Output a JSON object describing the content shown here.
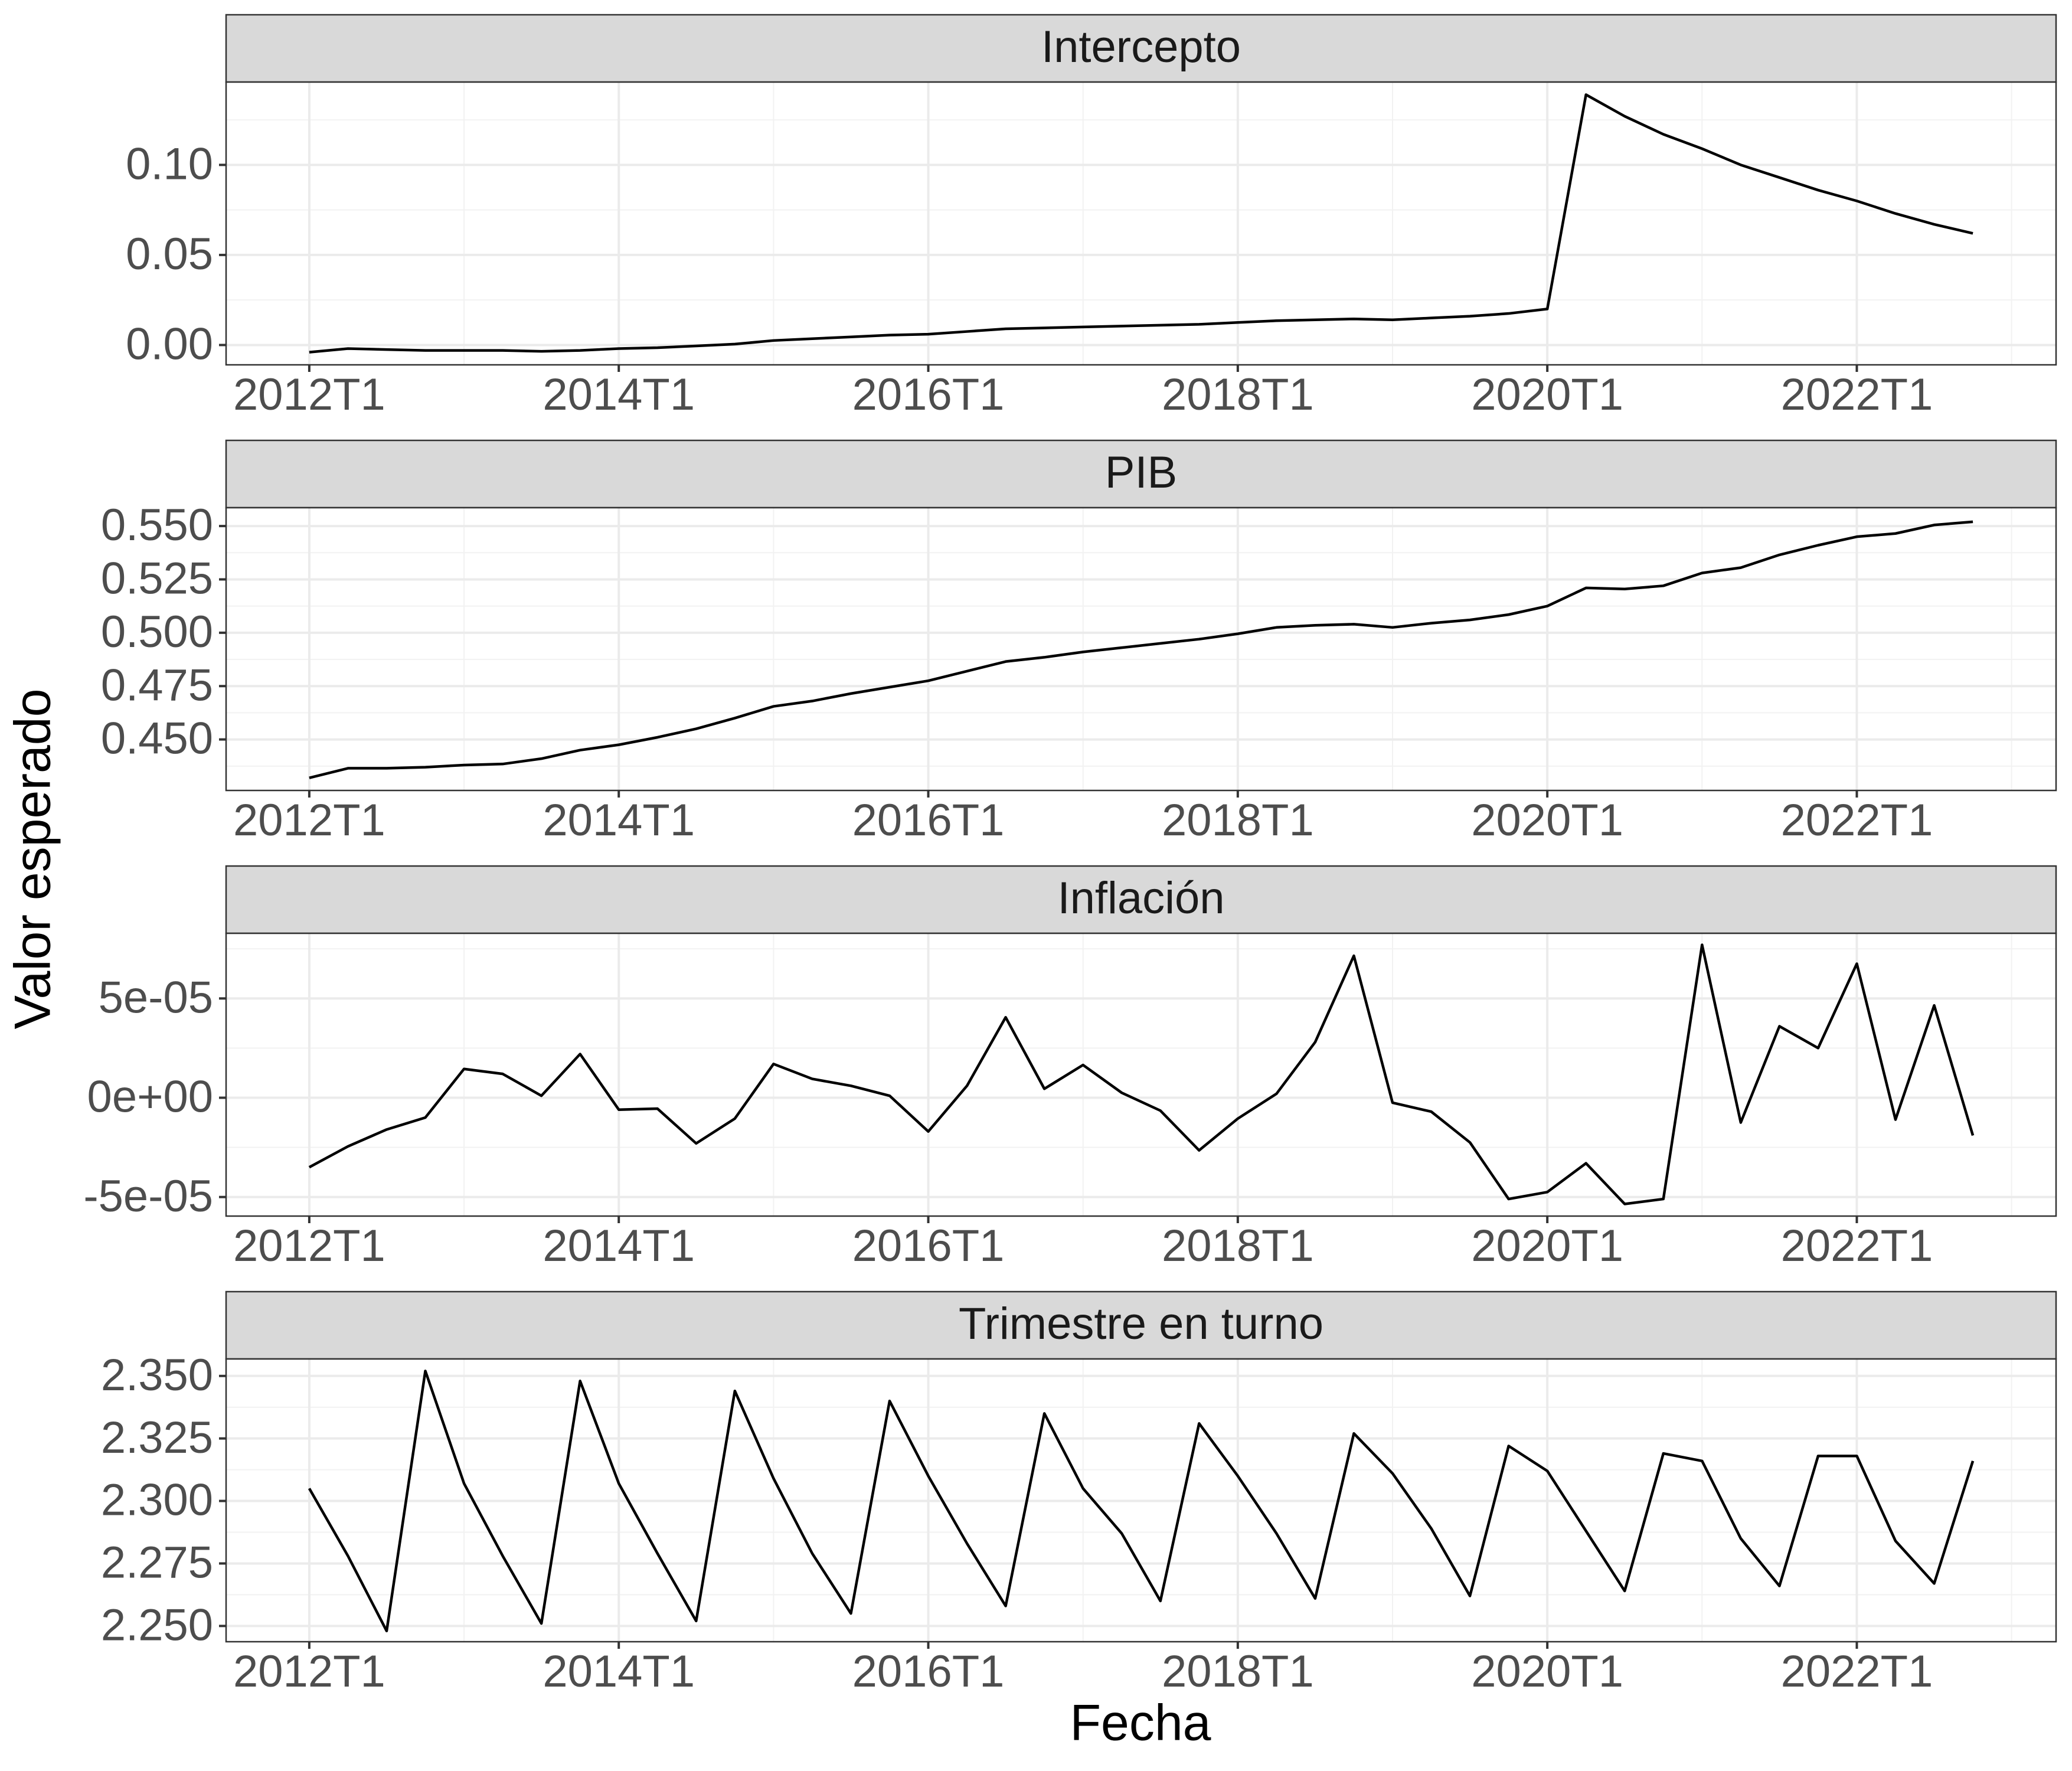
{
  "xlabel": "Fecha",
  "ylabel": "Valor esperado",
  "chart_data": [
    {
      "type": "line",
      "title": "Intercepto",
      "categories": [
        "2012T1",
        null,
        null,
        null,
        null,
        null,
        null,
        null,
        "2014T1",
        null,
        null,
        null,
        null,
        null,
        null,
        null,
        "2016T1",
        null,
        null,
        null,
        null,
        null,
        null,
        null,
        "2018T1",
        null,
        null,
        null,
        null,
        null,
        null,
        null,
        "2020T1",
        null,
        null,
        null,
        null,
        null,
        null,
        null,
        "2022T1",
        null,
        null,
        null
      ],
      "values": [
        -0.004,
        -0.002,
        -0.0025,
        -0.003,
        -0.003,
        -0.003,
        -0.0035,
        -0.003,
        -0.002,
        -0.0015,
        -0.0005,
        0.0005,
        0.0025,
        0.0035,
        0.0045,
        0.0055,
        0.006,
        0.0075,
        0.009,
        0.0095,
        0.01,
        0.0105,
        0.011,
        0.0115,
        0.0125,
        0.0135,
        0.014,
        0.0145,
        0.014,
        0.015,
        0.016,
        0.0175,
        0.02,
        0.139,
        0.127,
        0.117,
        0.109,
        0.1,
        0.093,
        0.086,
        0.08,
        0.073,
        0.067,
        0.062
      ],
      "color": "#000000",
      "ylim": [
        -0.011,
        0.146
      ],
      "yticks": [
        {
          "value": 0,
          "label": "0.00"
        },
        {
          "value": 0.05,
          "label": "0.05"
        },
        {
          "value": 0.1,
          "label": "0.10"
        }
      ],
      "grid": true
    },
    {
      "type": "line",
      "title": "PIB",
      "categories": [
        "2012T1",
        null,
        null,
        null,
        null,
        null,
        null,
        null,
        "2014T1",
        null,
        null,
        null,
        null,
        null,
        null,
        null,
        "2016T1",
        null,
        null,
        null,
        null,
        null,
        null,
        null,
        "2018T1",
        null,
        null,
        null,
        null,
        null,
        null,
        null,
        "2020T1",
        null,
        null,
        null,
        null,
        null,
        null,
        null,
        "2022T1",
        null,
        null,
        null
      ],
      "values": [
        0.432,
        0.4365,
        0.4365,
        0.437,
        0.438,
        0.4385,
        0.441,
        0.445,
        0.4475,
        0.451,
        0.455,
        0.46,
        0.4655,
        0.468,
        0.4715,
        0.4745,
        0.4775,
        0.482,
        0.4865,
        0.4885,
        0.491,
        0.493,
        0.495,
        0.497,
        0.4995,
        0.5025,
        0.5035,
        0.504,
        0.5025,
        0.5045,
        0.506,
        0.5085,
        0.5125,
        0.521,
        0.5205,
        0.522,
        0.528,
        0.5305,
        0.5365,
        0.541,
        0.545,
        0.5465,
        0.5505,
        0.552
      ],
      "color": "#000000",
      "ylim": [
        0.4261,
        0.5586
      ],
      "yticks": [
        {
          "value": 0.45,
          "label": "0.450"
        },
        {
          "value": 0.475,
          "label": "0.475"
        },
        {
          "value": 0.5,
          "label": "0.500"
        },
        {
          "value": 0.525,
          "label": "0.525"
        },
        {
          "value": 0.55,
          "label": "0.550"
        }
      ],
      "grid": true
    },
    {
      "type": "line",
      "title": "Inflación",
      "categories": [
        "2012T1",
        null,
        null,
        null,
        null,
        null,
        null,
        null,
        "2014T1",
        null,
        null,
        null,
        null,
        null,
        null,
        null,
        "2016T1",
        null,
        null,
        null,
        null,
        null,
        null,
        null,
        "2018T1",
        null,
        null,
        null,
        null,
        null,
        null,
        null,
        "2020T1",
        null,
        null,
        null,
        null,
        null,
        null,
        null,
        "2022T1",
        null,
        null,
        null
      ],
      "values": [
        -3.5e-05,
        -2.45e-05,
        -1.6e-05,
        -1e-05,
        1.45e-05,
        1.2e-05,
        1e-06,
        2.2e-05,
        -6e-06,
        -5.5e-06,
        -2.3e-05,
        -1.05e-05,
        1.7e-05,
        9.5e-06,
        6e-06,
        1e-06,
        -1.7e-05,
        6e-06,
        4.05e-05,
        4.5e-06,
        1.65e-05,
        2.5e-06,
        -6.5e-06,
        -2.65e-05,
        -1.05e-05,
        2e-06,
        2.8e-05,
        7.15e-05,
        -2.5e-06,
        -7e-06,
        -2.25e-05,
        -5.1e-05,
        -4.75e-05,
        -3.3e-05,
        -5.35e-05,
        -5.1e-05,
        7.7e-05,
        -1.25e-05,
        3.6e-05,
        2.5e-05,
        6.75e-05,
        -1.1e-05,
        4.65e-05,
        -1.9e-05
      ],
      "color": "#000000",
      "ylim": [
        -5.96e-05,
        8.28e-05
      ],
      "yticks": [
        {
          "value": -5e-05,
          "label": "-5e-05"
        },
        {
          "value": 0,
          "label": "0e+00"
        },
        {
          "value": 5e-05,
          "label": "5e-05"
        }
      ],
      "grid": true
    },
    {
      "type": "line",
      "title": "Trimestre en turno",
      "categories": [
        "2012T1",
        null,
        null,
        null,
        null,
        null,
        null,
        null,
        "2014T1",
        null,
        null,
        null,
        null,
        null,
        null,
        null,
        "2016T1",
        null,
        null,
        null,
        null,
        null,
        null,
        null,
        "2018T1",
        null,
        null,
        null,
        null,
        null,
        null,
        null,
        "2020T1",
        null,
        null,
        null,
        null,
        null,
        null,
        null,
        "2022T1",
        null,
        null,
        null
      ],
      "values": [
        2.305,
        2.278,
        2.248,
        2.352,
        2.307,
        2.278,
        2.251,
        2.348,
        2.307,
        2.279,
        2.252,
        2.344,
        2.309,
        2.279,
        2.255,
        2.34,
        2.31,
        2.283,
        2.258,
        2.335,
        2.305,
        2.287,
        2.26,
        2.331,
        2.31,
        2.287,
        2.261,
        2.327,
        2.311,
        2.289,
        2.262,
        2.322,
        2.312,
        2.288,
        2.264,
        2.319,
        2.316,
        2.285,
        2.266,
        2.318,
        2.318,
        2.284,
        2.267,
        2.316
      ],
      "color": "#000000",
      "ylim": [
        2.2437,
        2.3568
      ],
      "yticks": [
        {
          "value": 2.25,
          "label": "2.250"
        },
        {
          "value": 2.275,
          "label": "2.275"
        },
        {
          "value": 2.3,
          "label": "2.300"
        },
        {
          "value": 2.325,
          "label": "2.325"
        },
        {
          "value": 2.35,
          "label": "2.350"
        }
      ],
      "grid": true
    }
  ]
}
